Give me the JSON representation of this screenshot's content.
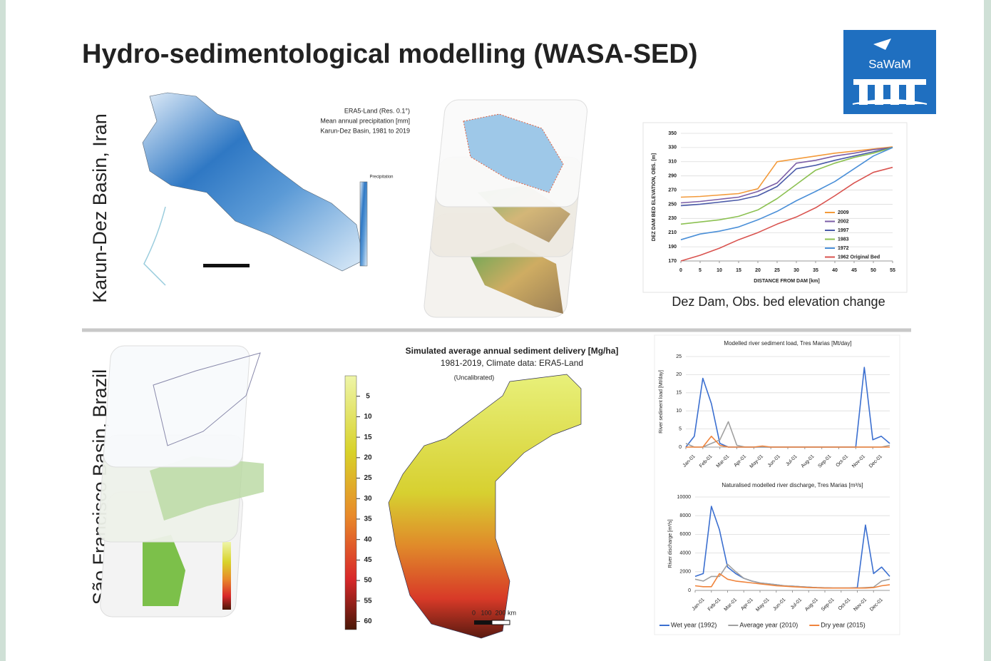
{
  "title": "Hydro-sedimentological modelling (WASA-SED)",
  "logo": "SaWaM",
  "sections": [
    {
      "label": "Karun-Dez Basin, Iran",
      "precip_map": {
        "caption": [
          "ERA5-Land (Res. 0.1°)",
          "Mean annual precipitation [mm]",
          "Karun-Dez Basin, 1981 to 2019"
        ],
        "legend_title": "Precipitation"
      },
      "caption": "Dez Dam, Obs. bed elevation change"
    },
    {
      "label": "São Francisco Basin, Brazil",
      "sediment_map": {
        "title": [
          "Simulated average annual sediment delivery [Mg/ha]",
          "1981-2019, Climate data: ERA5-Land",
          "(Uncalibrated)"
        ],
        "colorbar_lim": [
          0,
          62
        ],
        "colorbar_ticks": [
          5,
          10,
          15,
          20,
          25,
          30,
          35,
          40,
          45,
          50,
          55,
          60
        ],
        "scale": "0   100  200 km"
      }
    }
  ],
  "chart_data": [
    {
      "type": "line",
      "y_label": "DEZ DAM BED ELEVATION, OBS. [m]",
      "x_label": "DISTANCE FROM DAM [km]",
      "x": [
        0,
        5,
        10,
        15,
        20,
        25,
        30,
        35,
        40,
        45,
        50,
        55
      ],
      "xlim": [
        0,
        55
      ],
      "xticks": [
        0,
        5,
        10,
        15,
        20,
        25,
        30,
        35,
        40,
        45,
        50,
        55
      ],
      "ylim": [
        170,
        350
      ],
      "yticks": [
        170,
        190,
        210,
        230,
        250,
        270,
        290,
        310,
        330,
        350
      ],
      "grid": true,
      "legend": "lower right",
      "series": [
        {
          "name": "2009",
          "color": "#f39a3a",
          "values": [
            260,
            261,
            263,
            265,
            272,
            310,
            314,
            318,
            322,
            325,
            328,
            331
          ]
        },
        {
          "name": "2002",
          "color": "#7b5ea7",
          "values": [
            252,
            254,
            257,
            260,
            268,
            280,
            308,
            312,
            318,
            322,
            327,
            330
          ]
        },
        {
          "name": "1997",
          "color": "#4a5aa8",
          "values": [
            248,
            250,
            253,
            256,
            262,
            275,
            300,
            305,
            312,
            318,
            324,
            330
          ]
        },
        {
          "name": "1983",
          "color": "#8cc152",
          "values": [
            222,
            225,
            228,
            233,
            242,
            258,
            278,
            298,
            308,
            316,
            322,
            330
          ]
        },
        {
          "name": "1972",
          "color": "#4a8fd8",
          "values": [
            200,
            208,
            212,
            218,
            228,
            240,
            255,
            268,
            282,
            300,
            318,
            330
          ]
        },
        {
          "name": "1962 Original Bed",
          "color": "#d9534f",
          "values": [
            170,
            178,
            188,
            200,
            210,
            222,
            232,
            245,
            262,
            280,
            295,
            302
          ]
        }
      ]
    },
    {
      "type": "line",
      "title": "Modelled river sediment load, Tres Marias [Mt/day]",
      "y_label": "River sediment load [Mt/day]",
      "x": [
        0,
        0.5,
        1,
        1.5,
        2,
        2.5,
        3,
        3.5,
        4,
        4.5,
        5,
        5.5,
        6,
        6.5,
        7,
        7.5,
        8,
        8.5,
        9,
        9.5,
        10,
        10.5,
        11,
        11.5,
        12
      ],
      "xlim": [
        0,
        12
      ],
      "xticks": [
        {
          "value": 0,
          "label": "Jan-01"
        },
        {
          "value": 1,
          "label": "Feb-01"
        },
        {
          "value": 2,
          "label": "Mar-01"
        },
        {
          "value": 3,
          "label": "Apr-01"
        },
        {
          "value": 4,
          "label": "May-01"
        },
        {
          "value": 5,
          "label": "Jun-01"
        },
        {
          "value": 6,
          "label": "Jul-01"
        },
        {
          "value": 7,
          "label": "Aug-01"
        },
        {
          "value": 8,
          "label": "Sep-01"
        },
        {
          "value": 9,
          "label": "Oct-01"
        },
        {
          "value": 10,
          "label": "Nov-01"
        },
        {
          "value": 11,
          "label": "Dec-01"
        }
      ],
      "ylim": [
        0,
        25
      ],
      "yticks": [
        0,
        5,
        10,
        15,
        20,
        25
      ],
      "grid": true,
      "series": [
        {
          "color": "#3b6fd0",
          "values": [
            0,
            3,
            19,
            12,
            1,
            0,
            0,
            0,
            0,
            0,
            0,
            0,
            0,
            0,
            0,
            0,
            0,
            0,
            0,
            0,
            0,
            22,
            2,
            3,
            1
          ]
        },
        {
          "color": "#a0a0a0",
          "values": [
            1,
            0,
            0,
            1,
            2,
            7,
            0.5,
            0,
            0,
            0,
            0,
            0,
            0,
            0,
            0,
            0,
            0,
            0,
            0,
            0,
            0,
            0,
            0,
            0,
            0.5
          ]
        },
        {
          "color": "#f0843c",
          "values": [
            0,
            0,
            0,
            3,
            0.5,
            0,
            0,
            0,
            0,
            0.3,
            0,
            0,
            0,
            0,
            0,
            0,
            0,
            0,
            0,
            0,
            0,
            0,
            0,
            0,
            0
          ]
        }
      ]
    },
    {
      "type": "line",
      "title": "Naturalised modelled river discharge, Tres Marias [m³/s]",
      "y_label": "River discharge [m³/s]",
      "x": [
        0,
        0.5,
        1,
        1.5,
        2,
        2.5,
        3,
        3.5,
        4,
        4.5,
        5,
        5.5,
        6,
        6.5,
        7,
        7.5,
        8,
        8.5,
        9,
        9.5,
        10,
        10.5,
        11,
        11.5,
        12
      ],
      "xlim": [
        0,
        12
      ],
      "xticks": [
        {
          "value": 0,
          "label": "Jan-01"
        },
        {
          "value": 1,
          "label": "Feb-01"
        },
        {
          "value": 2,
          "label": "Mar-01"
        },
        {
          "value": 3,
          "label": "Apr-01"
        },
        {
          "value": 4,
          "label": "May-01"
        },
        {
          "value": 5,
          "label": "Jun-01"
        },
        {
          "value": 6,
          "label": "Jul-01"
        },
        {
          "value": 7,
          "label": "Aug-01"
        },
        {
          "value": 8,
          "label": "Sep-01"
        },
        {
          "value": 9,
          "label": "Oct-01"
        },
        {
          "value": 10,
          "label": "Nov-01"
        },
        {
          "value": 11,
          "label": "Dec-01"
        }
      ],
      "ylim": [
        0,
        10000
      ],
      "yticks": [
        0,
        2000,
        4000,
        6000,
        8000,
        10000
      ],
      "grid": true,
      "legend": "bottom",
      "series": [
        {
          "name": "Wet year (1992)",
          "color": "#3b6fd0",
          "values": [
            1500,
            1800,
            9000,
            6500,
            2500,
            1800,
            1300,
            1000,
            800,
            700,
            600,
            500,
            450,
            400,
            350,
            300,
            280,
            250,
            250,
            250,
            300,
            7000,
            1800,
            2500,
            1500
          ]
        },
        {
          "name": "Average year (2010)",
          "color": "#a0a0a0",
          "values": [
            1200,
            1000,
            1500,
            1500,
            2800,
            2000,
            1300,
            1000,
            800,
            700,
            600,
            500,
            450,
            400,
            350,
            300,
            280,
            250,
            250,
            250,
            250,
            300,
            350,
            1000,
            1200
          ]
        },
        {
          "name": "Dry year (2015)",
          "color": "#f0843c",
          "values": [
            500,
            400,
            400,
            1800,
            1200,
            1000,
            900,
            800,
            700,
            600,
            500,
            450,
            400,
            350,
            300,
            280,
            250,
            250,
            250,
            250,
            250,
            250,
            300,
            500,
            600
          ]
        }
      ]
    }
  ]
}
